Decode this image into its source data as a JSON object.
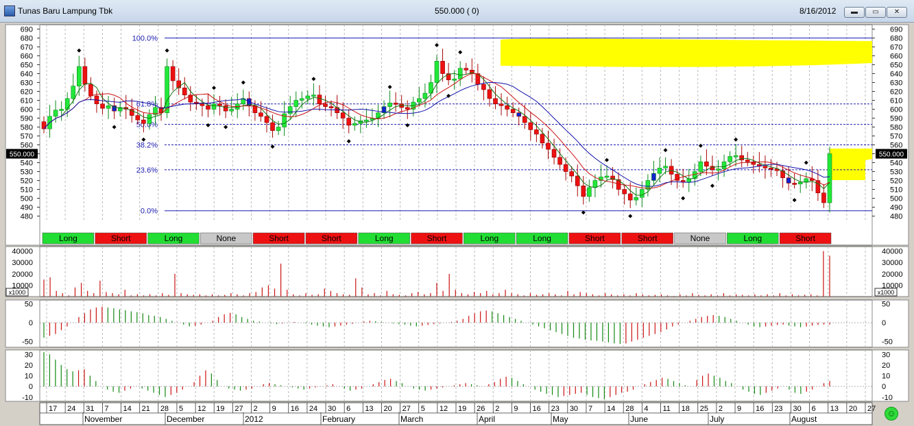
{
  "window": {
    "title": "Tunas Baru Lampung Tbk",
    "price_status": "550.000 ( 0)",
    "date": "8/16/2012",
    "minimize": "▬",
    "maximize": "▭",
    "close": "✕"
  },
  "current_price_label": "550.000",
  "colors": {
    "up": "#22e83a",
    "down": "#ee1111",
    "neutral": "#1122cc",
    "highlight": "#ffff00",
    "fib": "#1a1ab0",
    "ma_fast": "#117711",
    "ma_mid": "#cc1111",
    "ma_slow": "#1111aa"
  },
  "chart_data": [
    {
      "type": "candlestick",
      "ylim": [
        475,
        695
      ],
      "y_ticks": [
        480,
        490,
        500,
        510,
        520,
        530,
        540,
        550,
        560,
        570,
        580,
        590,
        600,
        610,
        620,
        630,
        640,
        650,
        660,
        670,
        680,
        690
      ],
      "fibonacci": [
        {
          "label": "100.0%",
          "value": 680
        },
        {
          "label": "61.8%",
          "value": 606
        },
        {
          "label": "50.0%",
          "value": 583
        },
        {
          "label": "38.2%",
          "value": 560
        },
        {
          "label": "23.6%",
          "value": 532
        },
        {
          "label": "0.0%",
          "value": 486
        }
      ],
      "series_close": [
        578,
        592,
        599,
        600,
        612,
        626,
        648,
        628,
        615,
        606,
        601,
        604,
        598,
        602,
        600,
        593,
        588,
        584,
        594,
        602,
        596,
        648,
        632,
        624,
        616,
        608,
        606,
        604,
        600,
        606,
        604,
        598,
        600,
        606,
        612,
        604,
        596,
        592,
        585,
        576,
        580,
        595,
        603,
        610,
        612,
        615,
        616,
        606,
        603,
        602,
        596,
        590,
        582,
        584,
        587,
        588,
        590,
        596,
        603,
        607,
        606,
        602,
        600,
        608,
        612,
        618,
        630,
        654,
        640,
        633,
        634,
        646,
        644,
        640,
        628,
        622,
        612,
        606,
        604,
        600,
        596,
        592,
        585,
        577,
        572,
        562,
        555,
        546,
        538,
        530,
        525,
        514,
        502,
        512,
        520,
        524,
        525,
        521,
        510,
        505,
        498,
        501,
        510,
        520,
        528,
        534,
        536,
        527,
        520,
        518,
        522,
        530,
        541,
        536,
        532,
        533,
        541,
        547,
        548,
        543,
        541,
        538,
        536,
        534,
        533,
        531,
        523,
        517,
        516,
        518,
        522,
        520,
        506,
        495,
        550
      ],
      "start_date": "2011-10-17",
      "signals": [
        {
          "label": "Long",
          "color": "green"
        },
        {
          "label": "Short",
          "color": "red"
        },
        {
          "label": "Long",
          "color": "green"
        },
        {
          "label": "None",
          "color": "gray"
        },
        {
          "label": "Short",
          "color": "red"
        },
        {
          "label": "Short",
          "color": "red"
        },
        {
          "label": "Long",
          "color": "green"
        },
        {
          "label": "Short",
          "color": "red"
        },
        {
          "label": "Long",
          "color": "green"
        },
        {
          "label": "Long",
          "color": "green"
        },
        {
          "label": "Short",
          "color": "red"
        },
        {
          "label": "Short",
          "color": "red"
        },
        {
          "label": "None",
          "color": "gray"
        },
        {
          "label": "Long",
          "color": "green"
        },
        {
          "label": "Short",
          "color": "red"
        }
      ]
    },
    {
      "type": "bar",
      "name": "volume",
      "unit_label": "x1000",
      "y_ticks": [
        10000,
        20000,
        30000,
        40000
      ],
      "ylim": [
        0,
        44000
      ],
      "values": [
        15000,
        17000,
        5000,
        3000,
        1000,
        8000,
        12000,
        5000,
        3000,
        14000,
        4000,
        3000,
        2000,
        6000,
        1000,
        2000,
        1000,
        2000,
        1000,
        3000,
        1500,
        20000,
        3000,
        2000,
        1500,
        2000,
        1000,
        2000,
        1000,
        1500,
        3000,
        2000,
        1000,
        3000,
        4000,
        8000,
        10000,
        7000,
        29000,
        6000,
        2000,
        1000,
        3000,
        1500,
        2000,
        7000,
        5000,
        3000,
        2000,
        1500,
        16000,
        8000,
        2000,
        3000,
        1000,
        5000,
        2000,
        1500,
        1000,
        3000,
        4000,
        2000,
        3000,
        12000,
        5000,
        20000,
        6000,
        3000,
        2000,
        4000,
        3000,
        5000,
        2000,
        3000,
        6000,
        3000,
        2000,
        1000,
        3000,
        1500,
        2000,
        3000,
        2000,
        1000,
        5000,
        2000,
        4000,
        3000,
        2000,
        1000,
        3000,
        2000,
        1000,
        2000,
        1000,
        3000,
        2000,
        1000,
        1500,
        2000,
        1000,
        500,
        2000,
        1000,
        3000,
        1500,
        1000,
        2000,
        1000,
        3000,
        1000,
        2000,
        1500,
        1000,
        2000,
        1000,
        2000,
        1000,
        3000,
        1000,
        2000,
        1000,
        1500,
        2000,
        1000,
        40000,
        36000
      ]
    },
    {
      "type": "bar",
      "name": "oscillator_1",
      "y_ticks": [
        50,
        0,
        -50
      ],
      "ylim": [
        -65,
        60
      ],
      "values": [
        -40,
        -35,
        -30,
        -20,
        -10,
        0,
        15,
        25,
        35,
        40,
        42,
        40,
        38,
        35,
        33,
        30,
        28,
        25,
        20,
        18,
        15,
        10,
        5,
        0,
        -5,
        -10,
        -8,
        -5,
        0,
        5,
        15,
        22,
        26,
        22,
        15,
        10,
        5,
        3,
        0,
        -2,
        -4,
        -2,
        0,
        2,
        0,
        -2,
        -5,
        -8,
        -10,
        -12,
        -10,
        -8,
        -5,
        -3,
        0,
        3,
        5,
        4,
        2,
        0,
        -2,
        -4,
        -5,
        -8,
        -10,
        -8,
        -6,
        -4,
        -2,
        0,
        2,
        5,
        10,
        18,
        25,
        30,
        32,
        30,
        25,
        20,
        15,
        10,
        5,
        0,
        -5,
        -10,
        -15,
        -20,
        -25,
        -30,
        -35,
        -40,
        -42,
        -45,
        -47,
        -48,
        -50,
        -52,
        -55,
        -56,
        -55,
        -50,
        -45,
        -40,
        -35,
        -30,
        -25,
        -18,
        -10,
        -5,
        0,
        5,
        10,
        15,
        18,
        20,
        18,
        15,
        10,
        5,
        0,
        -5,
        -10,
        -12,
        -10,
        -8,
        -6,
        -5,
        -8,
        -10,
        -12,
        -10,
        -8,
        -6,
        -5,
        -5
      ]
    },
    {
      "type": "bar",
      "name": "oscillator_2",
      "y_ticks": [
        30,
        20,
        10,
        0,
        -10
      ],
      "ylim": [
        -14,
        34
      ],
      "values": [
        32,
        30,
        25,
        20,
        16,
        14,
        15,
        16,
        10,
        5,
        0,
        -3,
        -5,
        -6,
        -4,
        -2,
        0,
        -2,
        -4,
        -6,
        -8,
        -10,
        -8,
        -6,
        -3,
        0,
        4,
        10,
        15,
        12,
        6,
        0,
        -2,
        -3,
        -4,
        -3,
        -2,
        0,
        2,
        3,
        2,
        1,
        0,
        -1,
        -2,
        -3,
        -2,
        -1,
        0,
        1,
        2,
        0,
        -2,
        -4,
        -3,
        -2,
        0,
        2,
        4,
        6,
        7,
        5,
        3,
        0,
        -2,
        -3,
        -4,
        -3,
        -2,
        -1,
        0,
        1,
        2,
        3,
        2,
        1,
        0,
        2,
        4,
        7,
        9,
        8,
        5,
        2,
        0,
        -3,
        -5,
        -7,
        -8,
        -10,
        -9,
        -8,
        -7,
        -6,
        -8,
        -10,
        -11,
        -12,
        -10,
        -8,
        -6,
        -5,
        -3,
        0,
        2,
        4,
        6,
        8,
        7,
        5,
        3,
        1,
        0,
        6,
        10,
        12,
        10,
        8,
        5,
        3,
        0,
        -3,
        -5,
        -7,
        -8,
        -6,
        -4,
        -2,
        0,
        -3,
        -6,
        -7,
        -5,
        -3,
        0,
        3,
        5
      ]
    }
  ],
  "x_axis": {
    "days": [
      "17",
      "24",
      "31",
      "7",
      "14",
      "21",
      "28",
      "5",
      "12",
      "19",
      "27",
      "2",
      "9",
      "16",
      "24",
      "30",
      "6",
      "13",
      "20",
      "27",
      "5",
      "12",
      "19",
      "26",
      "2",
      "9",
      "16",
      "23",
      "30",
      "7",
      "14",
      "28",
      "4",
      "11",
      "18",
      "25",
      "2",
      "9",
      "16",
      "23",
      "30",
      "6",
      "13",
      "20",
      "27"
    ],
    "months": [
      "November",
      "December",
      "2012",
      "February",
      "March",
      "April",
      "May",
      "June",
      "July",
      "August"
    ]
  }
}
